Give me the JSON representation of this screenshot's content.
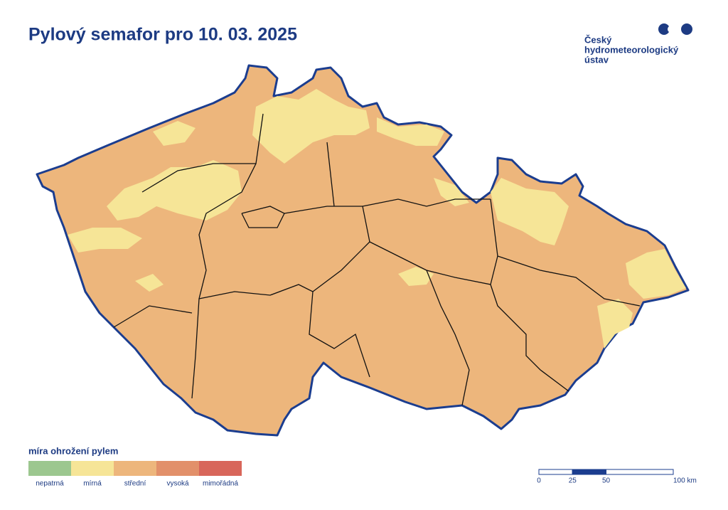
{
  "header": {
    "title": "Pylový semafor pro 10. 03. 2025"
  },
  "logo": {
    "lines": [
      "Český",
      "hydrometeorologický",
      "ústav"
    ]
  },
  "legend": {
    "title": "míra ohrožení pylem",
    "items": [
      {
        "label": "nepatrná",
        "color": "#9cc78f"
      },
      {
        "label": "mírná",
        "color": "#f6e597"
      },
      {
        "label": "střední",
        "color": "#edb67c"
      },
      {
        "label": "vysoká",
        "color": "#e2906a"
      },
      {
        "label": "mimořádná",
        "color": "#d8665a"
      }
    ]
  },
  "scale_bar": {
    "ticks": [
      0,
      25,
      50,
      {
        "value": 100,
        "label": "100 km"
      }
    ]
  }
}
